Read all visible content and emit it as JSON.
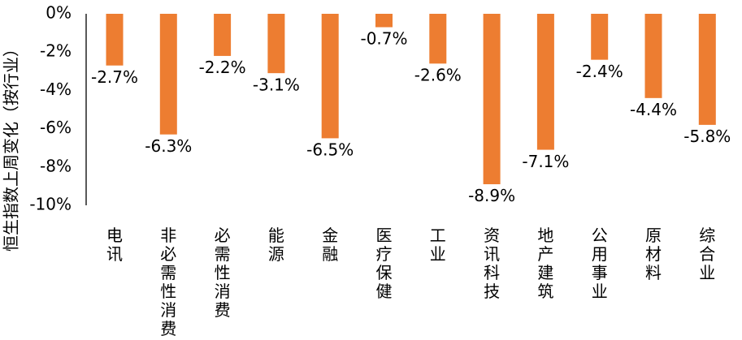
{
  "chart_data": {
    "type": "bar",
    "title": "",
    "xlabel": "",
    "ylabel": "恒生指数上周变化（按行业）",
    "categories": [
      "电讯",
      "非必需性消费",
      "必需性消费",
      "能源",
      "金融",
      "医疗保健",
      "工业",
      "资讯科技",
      "地产建筑",
      "公用事业",
      "原材料",
      "综合业"
    ],
    "values": [
      -2.7,
      -6.3,
      -2.2,
      -3.1,
      -6.5,
      -0.7,
      -2.6,
      -8.9,
      -7.1,
      -2.4,
      -4.4,
      -5.8
    ],
    "data_labels": [
      "-2.7%",
      "-6.3%",
      "-2.2%",
      "-3.1%",
      "-6.5%",
      "-0.7%",
      "-2.6%",
      "-8.9%",
      "-7.1%",
      "-2.4%",
      "-4.4%",
      "-5.8%"
    ],
    "ylim": [
      -10,
      0
    ],
    "yticks": [
      0,
      -2,
      -4,
      -6,
      -8,
      -10
    ],
    "ytick_labels": [
      "0%",
      "-2%",
      "-4%",
      "-6%",
      "-8%",
      "-10%"
    ],
    "grid": false,
    "legend": "none",
    "bar_color": "#ED7D31",
    "axis_color": "#000000"
  }
}
